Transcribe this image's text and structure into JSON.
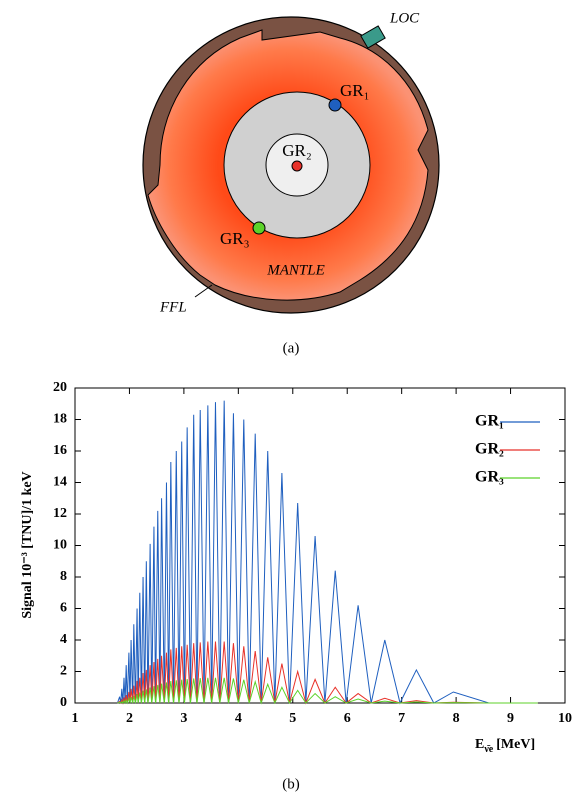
{
  "diagram": {
    "labels": {
      "loc": "LOC",
      "gr1": "GR₁",
      "gr2": "GR₂",
      "gr3": "GR₃",
      "mantle": "MANTLE",
      "ffl": "FFL"
    },
    "caption": "(a)"
  },
  "chart_data": {
    "type": "line",
    "caption": "(b)",
    "y_label": "Signal 10⁻³ [TNU]/1 keV",
    "x_label": {
      "base": "E",
      "sub": "ν̄e",
      "unit": "[MeV]"
    },
    "x": [
      1.78,
      1.82,
      1.84,
      1.86,
      1.88,
      1.9,
      1.92,
      1.94,
      1.96,
      1.99,
      2.01,
      2.03,
      2.06,
      2.08,
      2.11,
      2.14,
      2.16,
      2.19,
      2.22,
      2.25,
      2.28,
      2.31,
      2.34,
      2.38,
      2.41,
      2.45,
      2.48,
      2.52,
      2.56,
      2.59,
      2.64,
      2.68,
      2.72,
      2.76,
      2.81,
      2.86,
      2.91,
      2.96,
      3.01,
      3.06,
      3.12,
      3.18,
      3.24,
      3.3,
      3.37,
      3.44,
      3.51,
      3.58,
      3.66,
      3.74,
      3.82,
      3.91,
      4.0,
      4.1,
      4.2,
      4.31,
      4.42,
      4.54,
      4.67,
      4.8,
      4.94,
      5.09,
      5.24,
      5.41,
      5.59,
      5.78,
      5.98,
      6.2,
      6.44,
      6.69,
      6.97,
      7.27,
      7.59,
      7.95,
      8.6,
      9.5
    ],
    "series": [
      {
        "name": "GR₁",
        "color": "#1f5fbf",
        "values": [
          0,
          0.4,
          0,
          0.9,
          0,
          1.6,
          0,
          2.4,
          0,
          3.2,
          0,
          4.0,
          0,
          5.0,
          0,
          6.0,
          0,
          7.0,
          0,
          8.0,
          0,
          9.0,
          0,
          10.1,
          0,
          11.2,
          0,
          12.2,
          0,
          13.0,
          0,
          14.0,
          0,
          15.3,
          0,
          16.0,
          0,
          16.6,
          0,
          17.5,
          0,
          18.3,
          0,
          18.6,
          0,
          18.9,
          0,
          19.1,
          0,
          19.2,
          0,
          18.4,
          0,
          18.0,
          0,
          17.1,
          0,
          16.0,
          0,
          14.6,
          0,
          12.7,
          0,
          10.6,
          0,
          8.4,
          0,
          6.2,
          0,
          4.0,
          0,
          2.1,
          0,
          0.7,
          0,
          0
        ]
      },
      {
        "name": "GR₂",
        "color": "#e8322a",
        "values": [
          0,
          0.1,
          0,
          0.2,
          0,
          0.35,
          0,
          0.5,
          0,
          0.7,
          0,
          0.9,
          0,
          1.1,
          0,
          1.4,
          0,
          1.6,
          0,
          1.9,
          0,
          2.1,
          0,
          2.4,
          0,
          2.6,
          0,
          2.8,
          0,
          3.0,
          0,
          3.2,
          0,
          3.4,
          0,
          3.5,
          0,
          3.6,
          0,
          3.7,
          0,
          3.8,
          0,
          3.85,
          0,
          3.9,
          0,
          3.9,
          0,
          3.9,
          0,
          3.8,
          0,
          3.6,
          0,
          3.3,
          0,
          2.9,
          0,
          2.5,
          0,
          2.0,
          0,
          1.5,
          0,
          1.0,
          0,
          0.6,
          0,
          0.3,
          0,
          0.15,
          0,
          0.05,
          0,
          0
        ]
      },
      {
        "name": "GR₃",
        "color": "#5cd22a",
        "values": [
          0,
          0.04,
          0,
          0.08,
          0,
          0.14,
          0,
          0.2,
          0,
          0.3,
          0,
          0.37,
          0,
          0.45,
          0,
          0.57,
          0,
          0.66,
          0,
          0.78,
          0,
          0.86,
          0,
          0.98,
          0,
          1.07,
          0,
          1.15,
          0,
          1.23,
          0,
          1.31,
          0,
          1.39,
          0,
          1.44,
          0,
          1.48,
          0,
          1.52,
          0,
          1.56,
          0,
          1.58,
          0,
          1.6,
          0,
          1.6,
          0,
          1.6,
          0,
          1.56,
          0,
          1.48,
          0,
          1.35,
          0,
          1.19,
          0,
          1.0,
          0,
          0.8,
          0,
          0.6,
          0,
          0.4,
          0,
          0.25,
          0,
          0.12,
          0,
          0.06,
          0,
          0.02,
          0,
          0
        ]
      }
    ],
    "xlim": [
      1,
      10
    ],
    "ylim": [
      0,
      20
    ],
    "xticks": [
      1,
      2,
      3,
      4,
      5,
      6,
      7,
      8,
      9,
      10
    ],
    "yticks": [
      0,
      2,
      4,
      6,
      8,
      10,
      12,
      14,
      16,
      18,
      20
    ],
    "legend": "upper right"
  }
}
